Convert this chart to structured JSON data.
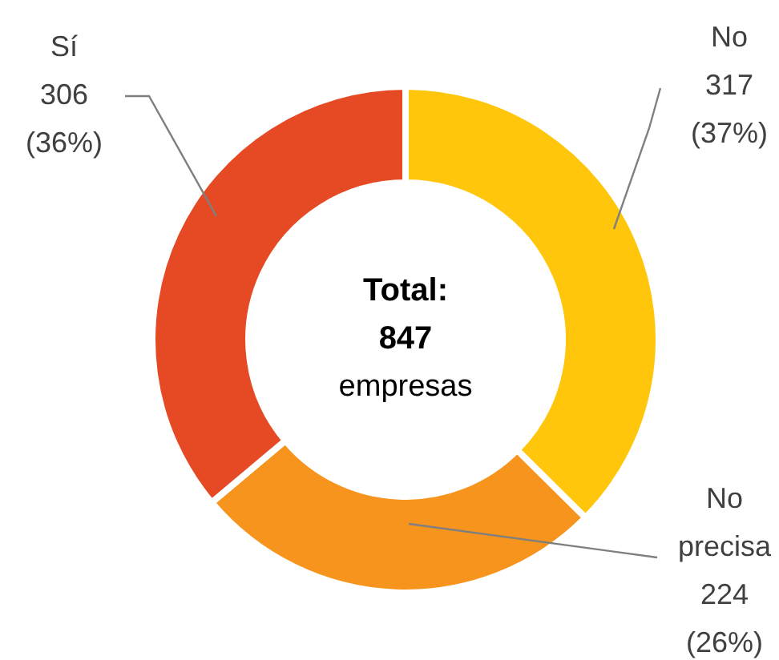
{
  "chart_data": {
    "type": "donut",
    "categories": [
      "No",
      "No precisa",
      "Sí"
    ],
    "values": [
      317,
      224,
      306
    ],
    "colors": [
      "#ffc60b",
      "#f7941d",
      "#e64a25"
    ],
    "value_labels": [
      "317 (37%)",
      "224 (26%)",
      "306 (36%)"
    ],
    "annotations": [
      "Total: 847 empresas"
    ],
    "legend": false
  }
}
